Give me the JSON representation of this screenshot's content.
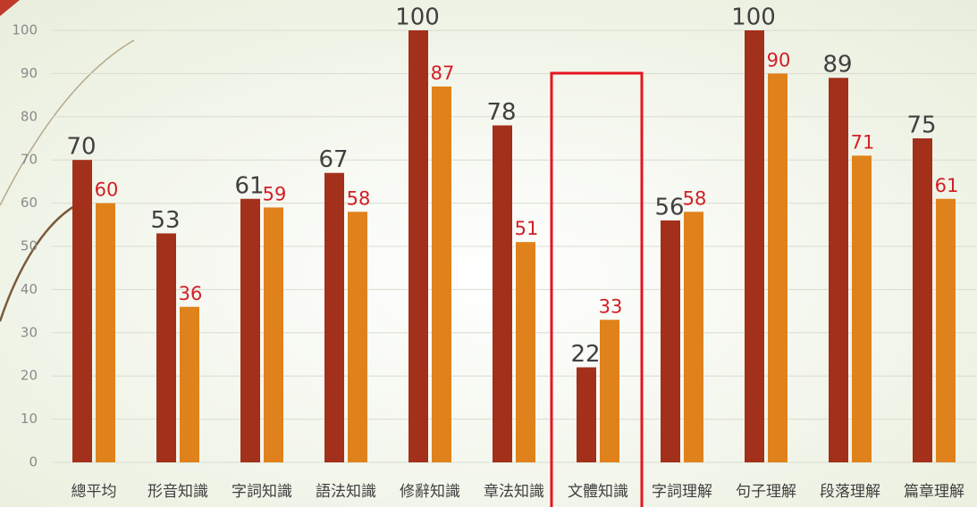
{
  "chart_data": {
    "type": "bar",
    "categories": [
      "總平均",
      "形音知識",
      "字詞知識",
      "語法知識",
      "修辭知識",
      "章法知識",
      "文體知識",
      "字詞理解",
      "句子理解",
      "段落理解",
      "篇章理解"
    ],
    "series": [
      {
        "color": "#a3301a",
        "values": [
          70,
          53,
          61,
          67,
          100,
          78,
          22,
          56,
          100,
          89,
          75
        ]
      },
      {
        "color": "#e0821c",
        "values": [
          60,
          36,
          59,
          58,
          87,
          51,
          33,
          58,
          90,
          71,
          61
        ]
      }
    ],
    "ylim": [
      0,
      100
    ],
    "yticks": [
      0,
      10,
      20,
      30,
      40,
      50,
      60,
      70,
      80,
      90,
      100
    ],
    "grid": true
  }
}
